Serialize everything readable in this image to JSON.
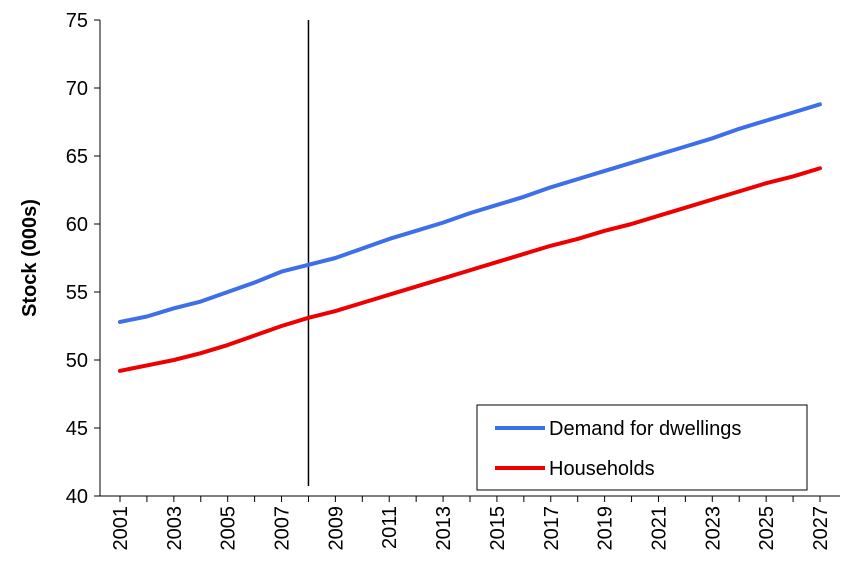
{
  "chart_data": {
    "type": "line",
    "title": "",
    "xlabel": "",
    "ylabel": "Stock (000s)",
    "ylim": [
      40,
      75
    ],
    "yticks": [
      40,
      45,
      50,
      55,
      60,
      65,
      70,
      75
    ],
    "xlim": [
      2001,
      2027
    ],
    "xticks": [
      "2001",
      "2003",
      "2005",
      "2007",
      "2009",
      "2011",
      "2013",
      "2015",
      "2017",
      "2019",
      "2021",
      "2023",
      "2025",
      "2027"
    ],
    "x": [
      2001,
      2002,
      2003,
      2004,
      2005,
      2006,
      2007,
      2008,
      2009,
      2010,
      2011,
      2012,
      2013,
      2014,
      2015,
      2016,
      2017,
      2018,
      2019,
      2020,
      2021,
      2022,
      2023,
      2024,
      2025,
      2026,
      2027
    ],
    "vertical_marker_x": 2008,
    "grid": false,
    "legend_position": "bottom-right",
    "series": [
      {
        "name": "Demand for dwellings",
        "color": "#3d6fe8",
        "values": [
          52.8,
          53.2,
          53.8,
          54.3,
          55.0,
          55.7,
          56.5,
          57.0,
          57.5,
          58.2,
          58.9,
          59.5,
          60.1,
          60.8,
          61.4,
          62.0,
          62.7,
          63.3,
          63.9,
          64.5,
          65.1,
          65.7,
          66.3,
          67.0,
          67.6,
          68.2,
          68.8
        ]
      },
      {
        "name": "Households",
        "color": "#ee0000",
        "values": [
          49.2,
          49.6,
          50.0,
          50.5,
          51.1,
          51.8,
          52.5,
          53.1,
          53.6,
          54.2,
          54.8,
          55.4,
          56.0,
          56.6,
          57.2,
          57.8,
          58.4,
          58.9,
          59.5,
          60.0,
          60.6,
          61.2,
          61.8,
          62.4,
          63.0,
          63.5,
          64.1
        ]
      }
    ]
  }
}
